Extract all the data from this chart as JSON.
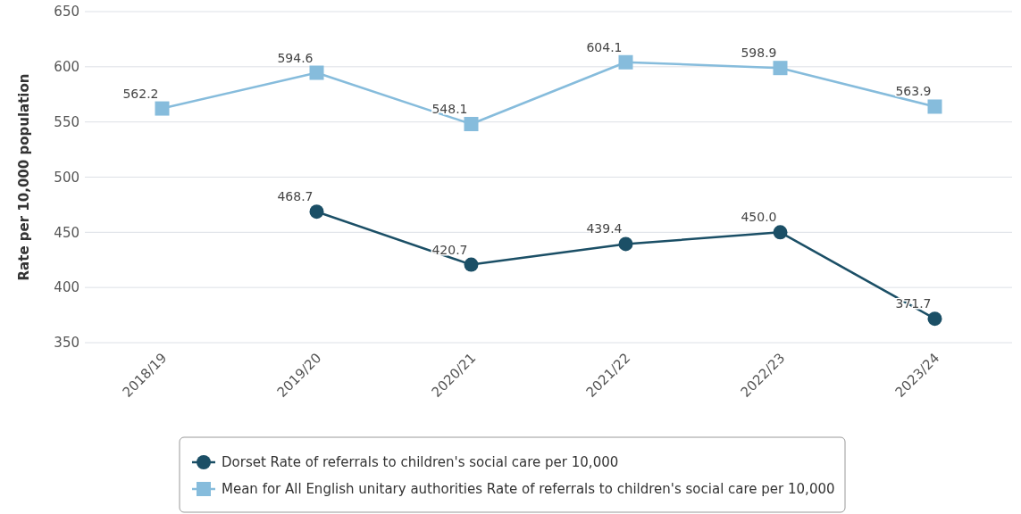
{
  "chart_data": {
    "type": "line",
    "ylabel": "Rate per 10,000 population",
    "categories": [
      "2018/19",
      "2019/20",
      "2020/21",
      "2021/22",
      "2022/23",
      "2023/24"
    ],
    "series": [
      {
        "name": "Dorset Rate of referrals to children's social care per 10,000",
        "color": "#1b4f66",
        "marker": "circle",
        "values": [
          null,
          468.7,
          420.7,
          439.4,
          450.0,
          371.7
        ],
        "value_labels": [
          null,
          "468.7",
          "420.7",
          "439.4",
          "450.0",
          "371.7"
        ]
      },
      {
        "name": "Mean for All English unitary authorities Rate of referrals to children's social care per 10,000",
        "color": "#86bcdc",
        "marker": "square",
        "values": [
          562.2,
          594.6,
          548.1,
          604.1,
          598.9,
          563.9
        ],
        "value_labels": [
          "562.2",
          "594.6",
          "548.1",
          "604.1",
          "598.9",
          "563.9"
        ]
      }
    ],
    "ylim": [
      350,
      650
    ],
    "yticks": [
      350,
      400,
      450,
      500,
      550,
      600,
      650
    ],
    "grid": "y",
    "legend": "bottom"
  }
}
